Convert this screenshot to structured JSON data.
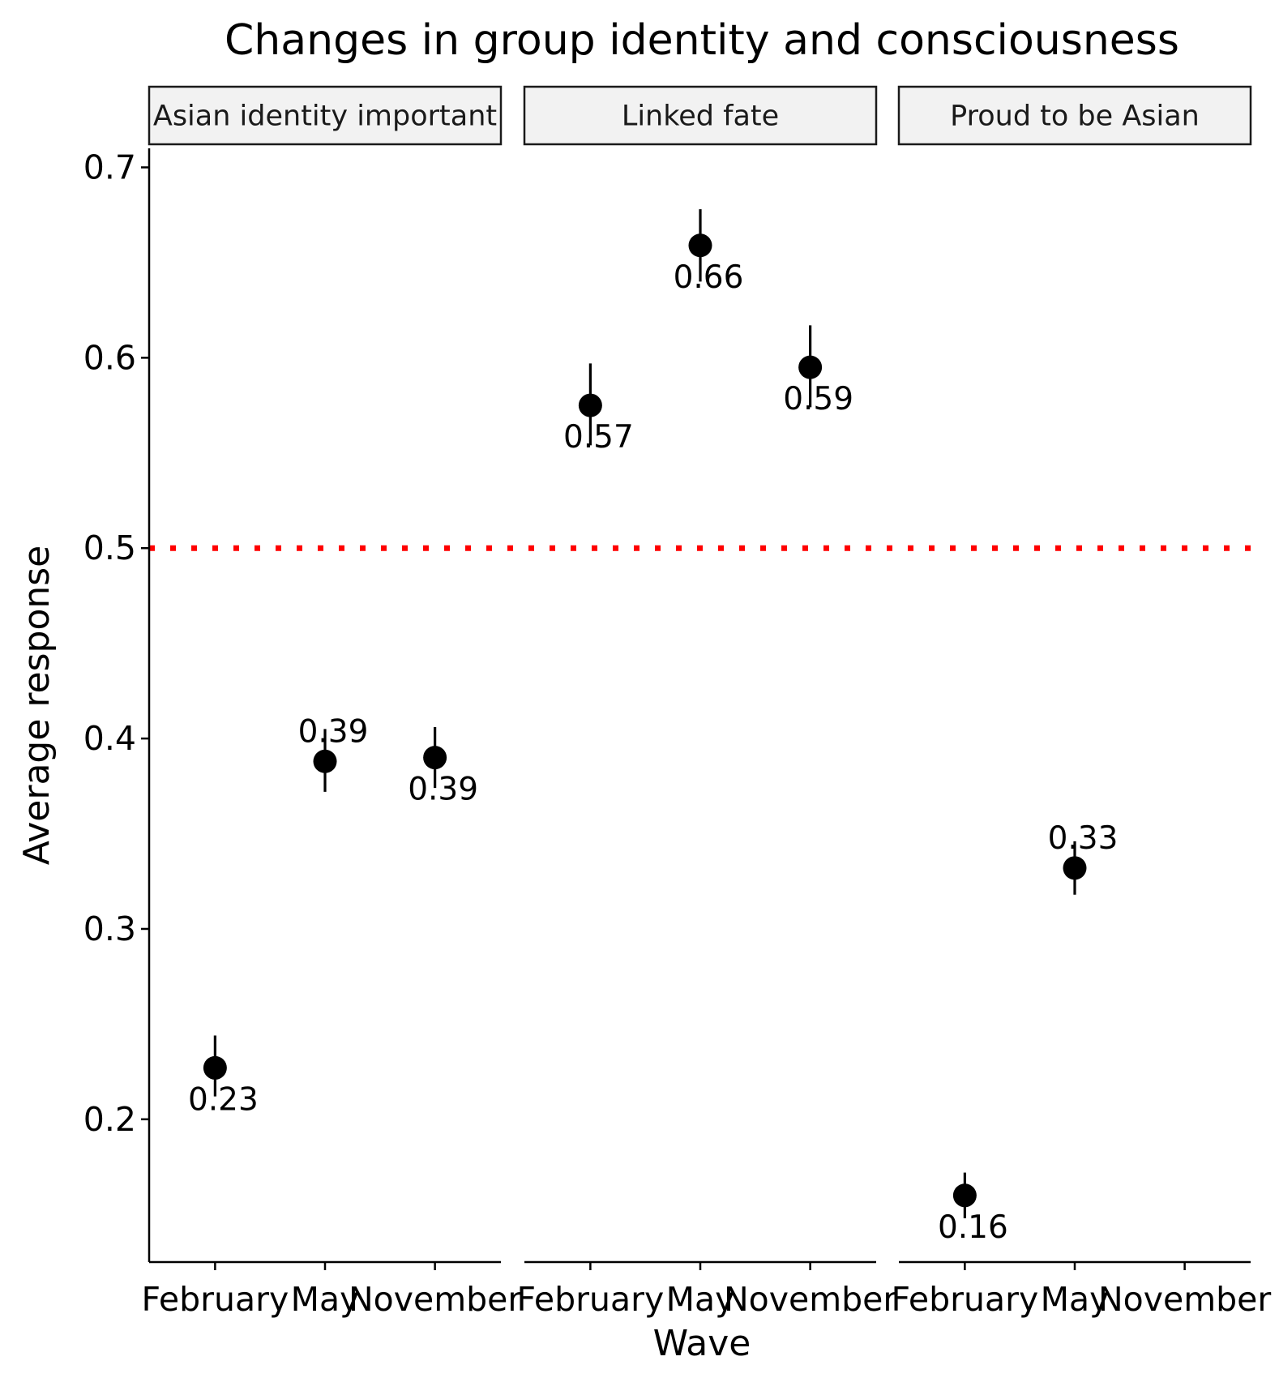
{
  "chart_data": {
    "type": "scatter",
    "title": "Changes in group identity and consciousness",
    "xlabel": "Wave",
    "ylabel": "Average response",
    "categories": [
      "February",
      "May",
      "November"
    ],
    "ylim": [
      0.125,
      0.71
    ],
    "yticks": [
      0.2,
      0.3,
      0.4,
      0.5,
      0.6,
      0.7
    ],
    "ytick_labels": [
      "0.2",
      "0.3",
      "0.4",
      "0.5",
      "0.6",
      "0.7"
    ],
    "reference_line": {
      "y": 0.5,
      "color": "#ff0000",
      "style": "dotted"
    },
    "grid": false,
    "legend": "none",
    "point_color": "#000000",
    "panels": [
      {
        "name": "Asian identity important",
        "points": [
          {
            "x": "February",
            "y": 0.227,
            "ymin": 0.212,
            "ymax": 0.244,
            "label": "0.23",
            "label_pos": "below"
          },
          {
            "x": "May",
            "y": 0.388,
            "ymin": 0.372,
            "ymax": 0.405,
            "label": "0.39",
            "label_pos": "above"
          },
          {
            "x": "November",
            "y": 0.39,
            "ymin": 0.374,
            "ymax": 0.406,
            "label": "0.39",
            "label_pos": "below"
          }
        ]
      },
      {
        "name": "Linked fate",
        "points": [
          {
            "x": "February",
            "y": 0.575,
            "ymin": 0.554,
            "ymax": 0.597,
            "label": "0.57",
            "label_pos": "below"
          },
          {
            "x": "May",
            "y": 0.659,
            "ymin": 0.64,
            "ymax": 0.678,
            "label": "0.66",
            "label_pos": "below"
          },
          {
            "x": "November",
            "y": 0.595,
            "ymin": 0.574,
            "ymax": 0.617,
            "label": "0.59",
            "label_pos": "below"
          }
        ]
      },
      {
        "name": "Proud to be Asian",
        "points": [
          {
            "x": "February",
            "y": 0.16,
            "ymin": 0.148,
            "ymax": 0.172,
            "label": "0.16",
            "label_pos": "below"
          },
          {
            "x": "May",
            "y": 0.332,
            "ymin": 0.318,
            "ymax": 0.346,
            "label": "0.33",
            "label_pos": "above"
          }
        ]
      }
    ]
  }
}
